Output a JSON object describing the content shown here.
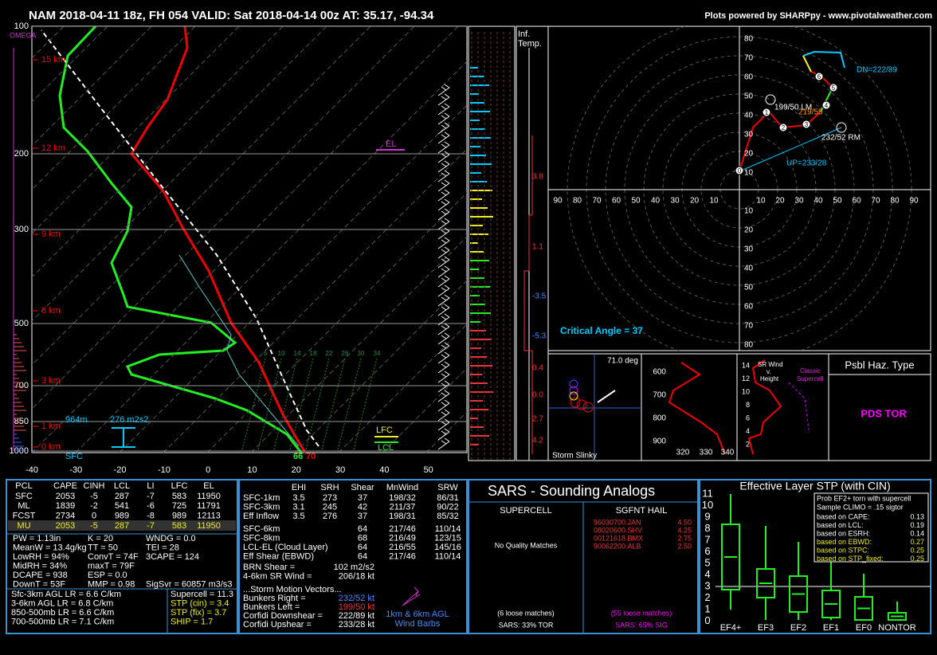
{
  "header": {
    "title": "NAM 2018-04-11 18z, FH 054   VALID: Sat 2018-04-14 00z   AT: 35.17, -94.34",
    "credit": "Plots powered by SHARPpy - www.pivotalweather.com"
  },
  "skewt": {
    "pressure_labels": [
      "100",
      "200",
      "300",
      "500",
      "700",
      "850",
      "1000"
    ],
    "height_labels": [
      "15 km",
      "12 km",
      "9 km",
      "6 km",
      "3 km",
      "1 km",
      "0 km"
    ],
    "temp_labels": [
      "-40",
      "-30",
      "-20",
      "-10",
      "0",
      "10",
      "20",
      "30",
      "40",
      "50"
    ],
    "mixing_ratios": [
      "6",
      "10",
      "14",
      "18",
      "22",
      "26",
      "30",
      "34"
    ],
    "omega": "OMEGA",
    "el": "EL",
    "lfc": "LFC",
    "lcl": "LCL",
    "sfc": "SFC",
    "lcl_height": "964m",
    "srh": "276 m2s2",
    "sfc_td": "66",
    "sfc_t": "70"
  },
  "inferred": {
    "title_1": "Inf.",
    "title_2": "Temp.",
    "labels": [
      "3.8",
      "1.1",
      "-3.5",
      "-5.3",
      "0.4",
      "0.0",
      "2.7",
      "4.2"
    ]
  },
  "hodograph": {
    "rings": [
      "80",
      "70",
      "60",
      "50",
      "40",
      "30",
      "20",
      "10"
    ],
    "x_left": [
      "90",
      "80",
      "70",
      "60",
      "50",
      "40",
      "30",
      "20",
      "10"
    ],
    "x_right": [
      "10",
      "20",
      "30",
      "40",
      "50",
      "60",
      "70",
      "80",
      "90"
    ],
    "lm": "199/50 LM",
    "mean": "219/55",
    "rm": "232/52 RM",
    "dn": "DN=222/89",
    "up": "UP=233/28",
    "critical_angle": "Critical Angle = 37",
    "points": [
      "0",
      "1",
      "2",
      "3",
      "4",
      "5",
      "6"
    ]
  },
  "slinky": {
    "angle": "71.0 deg",
    "title": "Storm Slinky"
  },
  "theta": {
    "pressures": [
      "600",
      "700",
      "800",
      "900"
    ],
    "temps": [
      "320",
      "330",
      "340"
    ]
  },
  "srwind": {
    "title": "SR Wind",
    "v": "v.",
    "height": "Height",
    "classic": "Classic",
    "supercell": "Supercell",
    "heights": [
      "14",
      "12",
      "10",
      "8",
      "6",
      "4",
      "2"
    ]
  },
  "hazard": {
    "title": "Psbl Haz. Type",
    "type": "PDS TOR"
  },
  "thermo": {
    "header": [
      "PCL",
      "CAPE",
      "CINH",
      "LCL",
      "LI",
      "LFC",
      "EL"
    ],
    "rows": [
      [
        "SFC",
        "2053",
        "-5",
        "287",
        "-7",
        "583",
        "11950"
      ],
      [
        "ML",
        "1839",
        "-2",
        "541",
        "-6",
        "725",
        "11791"
      ],
      [
        "FCST",
        "2734",
        "0",
        "989",
        "-8",
        "989",
        "12113"
      ],
      [
        "MU",
        "2053",
        "-5",
        "287",
        "-7",
        "583",
        "11950"
      ]
    ],
    "indices": [
      [
        "PW = 1.13in",
        "K = 20",
        "WNDG = 0.0"
      ],
      [
        "MeanW = 13.4g/kg",
        "TT = 50",
        "TEI = 28"
      ],
      [
        "LowRH = 94%",
        "ConvT = 74F",
        "3CAPE = 124"
      ],
      [
        "MidRH = 34%",
        "maxT = 79F"
      ],
      [
        "DCAPE = 938",
        "ESP = 0.0"
      ],
      [
        "DownT = 53F",
        "MMP = 0.98",
        "SigSvr = 60857 m3/s3"
      ]
    ],
    "lapse_rates": [
      "Sfc-3km AGL LR = 6.6 C/km",
      "3-6km AGL LR = 6.8 C/km",
      "850-500mb LR = 6.6 C/km",
      "700-500mb LR = 7.1 C/km"
    ],
    "composites": [
      "Supercell = 11.3",
      "STP (cin) = 3.4",
      "STP (fix) = 3.7",
      "SHIP = 1.7"
    ]
  },
  "kinematics": {
    "header": [
      "EHI",
      "SRH",
      "Shear",
      "MnWind",
      "SRW"
    ],
    "low_layers": [
      [
        "SFC-1km",
        "3.5",
        "273",
        "37",
        "198/32",
        "86/31"
      ],
      [
        "SFC-3km",
        "3.1",
        "245",
        "42",
        "211/37",
        "90/22"
      ],
      [
        "Eff Inflow",
        "3.5",
        "276",
        "37",
        "198/31",
        "85/32"
      ]
    ],
    "deep_layers": [
      [
        "SFC-6km",
        "64",
        "217/46",
        "110/14"
      ],
      [
        "SFC-8km",
        "68",
        "216/49",
        "123/15"
      ],
      [
        "LCL-EL (Cloud Layer)",
        "64",
        "216/55",
        "145/16"
      ],
      [
        "Eff Shear (EBWD)",
        "64",
        "217/46",
        "110/14"
      ]
    ],
    "other": [
      [
        "BRN Shear =",
        "102 m2/s2"
      ],
      [
        "4-6km SR Wind =",
        "206/18 kt"
      ]
    ],
    "motion_title": "...Storm Motion Vectors...",
    "motions": [
      [
        "Bunkers Right =",
        "232/52 kt"
      ],
      [
        "Bunkers Left =",
        "199/50 kt"
      ],
      [
        "Corfidi Downshear =",
        "222/89 kt"
      ],
      [
        "Corfidi Upshear =",
        "233/28 kt"
      ]
    ],
    "barbs_1": "1km & 6km AGL",
    "barbs_2": "Wind Barbs"
  },
  "sars": {
    "title": "SARS - Sounding Analogs",
    "supercell": "SUPERCELL",
    "hail": "SGFNT HAIL",
    "no_matches": "No Quality Matches",
    "hail_matches": [
      [
        "96030700.JAN",
        "4.50"
      ],
      [
        "08020600.SHV",
        "4.25"
      ],
      [
        "00121618.BMX",
        "2.75"
      ],
      [
        "90062200.ALB",
        "2.50"
      ]
    ],
    "supercell_loose": "(6 loose matches)",
    "hail_loose": "(55 loose matches)",
    "supercell_pct": "SARS: 33% TOR",
    "hail_pct": "SARS: 65% SIG"
  },
  "stp": {
    "title": "Effective Layer STP (with CIN)",
    "yticks": [
      "11",
      "10",
      "9",
      "8",
      "7",
      "6",
      "5",
      "4",
      "3",
      "2",
      "1",
      "0"
    ],
    "categories": [
      "EF4+",
      "EF3",
      "EF2",
      "EF1",
      "EF0",
      "NONTOR"
    ],
    "legend_1": "Prob EF2+ torn with supercell",
    "legend_2": "Sample CLIMO = .15 sigtor",
    "probs": [
      [
        "based on CAPE:",
        "0.13"
      ],
      [
        "based on LCL:",
        "0.19"
      ],
      [
        "based on ESRH:",
        "0.14"
      ],
      [
        "based on EBWD:",
        "0.27"
      ],
      [
        "based on STPC:",
        "0.25"
      ],
      [
        "based on STP_fixed:",
        "0.25"
      ]
    ]
  }
}
